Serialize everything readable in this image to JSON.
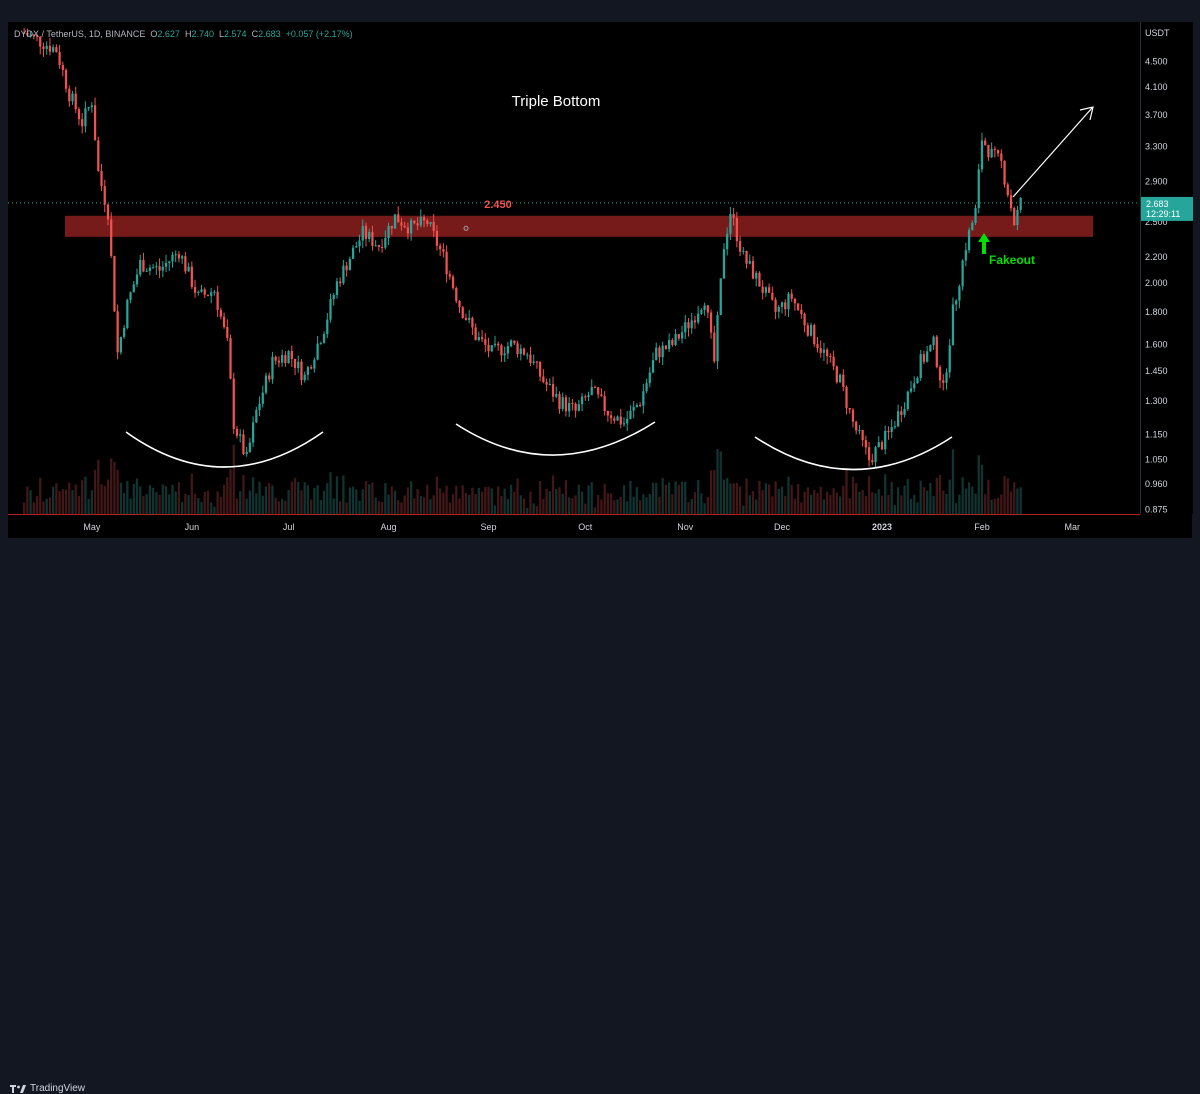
{
  "legend": {
    "symbol": "DYDX / TetherUS, 1D, BINANCE",
    "o_label": "O",
    "o_value": "2.627",
    "h_label": "H",
    "h_value": "2.740",
    "l_label": "L",
    "l_value": "2.574",
    "c_label": "C",
    "c_value": "2.683",
    "change": "+0.057 (+2.17%)"
  },
  "brand": {
    "name": "TradingView",
    "icon": "tradingview-logo-icon"
  },
  "colors": {
    "up": "#26a69a",
    "down": "#ef5350",
    "zone": "#8b1e1e",
    "current": "#26a69a"
  },
  "chart_data": {
    "type": "candlestick",
    "title": "Triple Bottom",
    "currency_label": "USDT",
    "y_scale": "log",
    "ylim": [
      0.86,
      5.2
    ],
    "y_ticks": [
      "4.500",
      "4.100",
      "3.700",
      "3.300",
      "2.900",
      "2.500",
      "2.200",
      "2.000",
      "1.800",
      "1.600",
      "1.450",
      "1.300",
      "1.150",
      "1.050",
      "0.960",
      "0.875"
    ],
    "x_ticks": [
      "May",
      "Jun",
      "Jul",
      "Aug",
      "Sep",
      "Oct",
      "Nov",
      "Dec",
      "2023",
      "Feb",
      "Mar"
    ],
    "current_price": "2.683",
    "countdown": "12:29:11",
    "resistance_zone": {
      "low": 2.37,
      "high": 2.56,
      "label": "2.450"
    },
    "annotations": {
      "fakeout": "Fakeout"
    },
    "series": [
      {
        "x": "2022-04-10",
        "v": 5.0
      },
      {
        "x": "2022-04-15",
        "v": 4.85
      },
      {
        "x": "2022-04-20",
        "v": 4.7
      },
      {
        "x": "2022-04-24",
        "v": 4.0
      },
      {
        "x": "2022-04-28",
        "v": 3.6
      },
      {
        "x": "2022-05-01",
        "v": 3.9
      },
      {
        "x": "2022-05-03",
        "v": 3.0
      },
      {
        "x": "2022-05-06",
        "v": 2.6
      },
      {
        "x": "2022-05-09",
        "v": 1.55
      },
      {
        "x": "2022-05-12",
        "v": 1.85
      },
      {
        "x": "2022-05-16",
        "v": 2.15
      },
      {
        "x": "2022-05-22",
        "v": 2.1
      },
      {
        "x": "2022-05-28",
        "v": 2.25
      },
      {
        "x": "2022-06-03",
        "v": 1.9
      },
      {
        "x": "2022-06-08",
        "v": 1.95
      },
      {
        "x": "2022-06-12",
        "v": 1.6
      },
      {
        "x": "2022-06-14",
        "v": 1.2
      },
      {
        "x": "2022-06-18",
        "v": 1.05
      },
      {
        "x": "2022-06-21",
        "v": 1.25
      },
      {
        "x": "2022-06-26",
        "v": 1.5
      },
      {
        "x": "2022-07-01",
        "v": 1.55
      },
      {
        "x": "2022-07-06",
        "v": 1.42
      },
      {
        "x": "2022-07-12",
        "v": 1.7
      },
      {
        "x": "2022-07-16",
        "v": 2.0
      },
      {
        "x": "2022-07-20",
        "v": 2.2
      },
      {
        "x": "2022-07-24",
        "v": 2.4
      },
      {
        "x": "2022-07-29",
        "v": 2.3
      },
      {
        "x": "2022-08-03",
        "v": 2.55
      },
      {
        "x": "2022-08-08",
        "v": 2.45
      },
      {
        "x": "2022-08-13",
        "v": 2.5
      },
      {
        "x": "2022-08-18",
        "v": 2.2
      },
      {
        "x": "2022-08-23",
        "v": 1.85
      },
      {
        "x": "2022-08-28",
        "v": 1.65
      },
      {
        "x": "2022-09-02",
        "v": 1.55
      },
      {
        "x": "2022-09-08",
        "v": 1.6
      },
      {
        "x": "2022-09-13",
        "v": 1.55
      },
      {
        "x": "2022-09-18",
        "v": 1.4
      },
      {
        "x": "2022-09-23",
        "v": 1.3
      },
      {
        "x": "2022-09-28",
        "v": 1.25
      },
      {
        "x": "2022-10-03",
        "v": 1.35
      },
      {
        "x": "2022-10-08",
        "v": 1.25
      },
      {
        "x": "2022-10-13",
        "v": 1.2
      },
      {
        "x": "2022-10-18",
        "v": 1.3
      },
      {
        "x": "2022-10-23",
        "v": 1.55
      },
      {
        "x": "2022-10-28",
        "v": 1.6
      },
      {
        "x": "2022-11-03",
        "v": 1.75
      },
      {
        "x": "2022-11-07",
        "v": 1.9
      },
      {
        "x": "2022-11-10",
        "v": 1.5
      },
      {
        "x": "2022-11-13",
        "v": 2.3
      },
      {
        "x": "2022-11-15",
        "v": 2.6
      },
      {
        "x": "2022-11-19",
        "v": 2.2
      },
      {
        "x": "2022-11-24",
        "v": 2.0
      },
      {
        "x": "2022-11-29",
        "v": 1.8
      },
      {
        "x": "2022-12-04",
        "v": 1.9
      },
      {
        "x": "2022-12-09",
        "v": 1.7
      },
      {
        "x": "2022-12-14",
        "v": 1.55
      },
      {
        "x": "2022-12-19",
        "v": 1.4
      },
      {
        "x": "2022-12-23",
        "v": 1.2
      },
      {
        "x": "2022-12-28",
        "v": 1.05
      },
      {
        "x": "2023-01-03",
        "v": 1.15
      },
      {
        "x": "2023-01-08",
        "v": 1.3
      },
      {
        "x": "2023-01-13",
        "v": 1.5
      },
      {
        "x": "2023-01-17",
        "v": 1.6
      },
      {
        "x": "2023-01-20",
        "v": 1.35
      },
      {
        "x": "2023-01-23",
        "v": 1.8
      },
      {
        "x": "2023-01-27",
        "v": 2.3
      },
      {
        "x": "2023-01-30",
        "v": 2.6
      },
      {
        "x": "2023-02-01",
        "v": 3.4
      },
      {
        "x": "2023-02-04",
        "v": 3.2
      },
      {
        "x": "2023-02-07",
        "v": 3.1
      },
      {
        "x": "2023-02-09",
        "v": 2.8
      },
      {
        "x": "2023-02-11",
        "v": 2.5
      },
      {
        "x": "2023-02-13",
        "v": 2.683
      }
    ]
  }
}
